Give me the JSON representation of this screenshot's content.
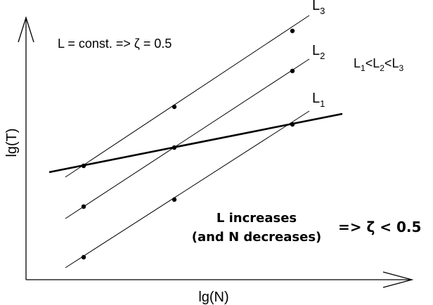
{
  "axes": {
    "x_label": "lg(N)",
    "y_label": "lg(T)"
  },
  "lines": [
    {
      "key": "L3",
      "base": "L",
      "sub": "3"
    },
    {
      "key": "L2",
      "base": "L",
      "sub": "2"
    },
    {
      "key": "L1",
      "base": "L",
      "sub": "1"
    }
  ],
  "annotations": {
    "const_rule": "L = const. => ζ = 0.5",
    "ordering": {
      "parts": [
        "L",
        "1",
        "<",
        "L",
        "2",
        "<",
        "L",
        "3"
      ]
    },
    "increase_line1": "L increases",
    "increase_line2": "(and N decreases)",
    "result": "=> ζ < 0.5"
  },
  "colors": {
    "ink": "#000000",
    "background": "#ffffff"
  }
}
